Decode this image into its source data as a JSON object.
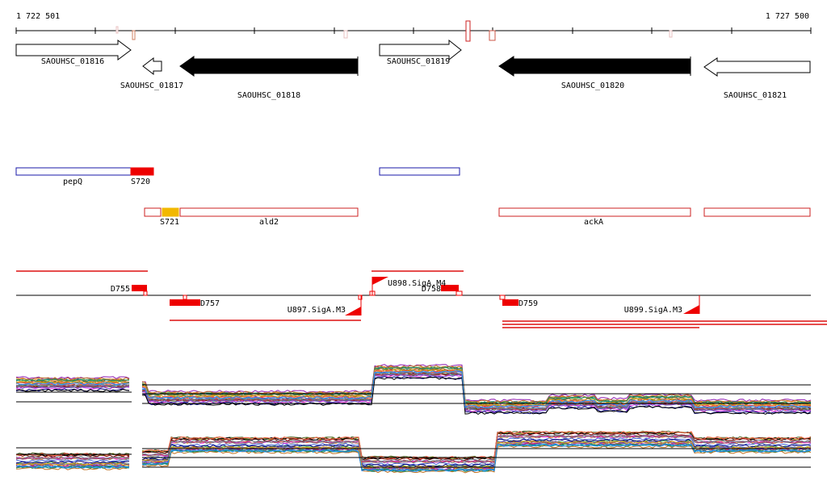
{
  "coordinates": {
    "start": "1 722 501",
    "end": "1 727 500"
  },
  "genes": [
    {
      "id": "SAOUHSC_01816",
      "strand": "+",
      "fill": "#ffffff"
    },
    {
      "id": "SAOUHSC_01817",
      "strand": "-",
      "fill": "#ffffff"
    },
    {
      "id": "SAOUHSC_01818",
      "strand": "-",
      "fill": "#000000"
    },
    {
      "id": "SAOUHSC_01819",
      "strand": "+",
      "fill": "#ffffff"
    },
    {
      "id": "SAOUHSC_01820",
      "strand": "-",
      "fill": "#000000"
    },
    {
      "id": "SAOUHSC_01821",
      "strand": "-",
      "fill": "#ffffff"
    }
  ],
  "plus_strand_features": [
    "pepQ",
    "S720"
  ],
  "minus_strand_features": [
    "S721",
    "ald2",
    "ackA"
  ],
  "segment_labels": [
    "D755",
    "D757",
    "D758",
    "D759"
  ],
  "promoter_labels": [
    "U898.SigA.M4",
    "U897.SigA.M3",
    "U899.SigA.M3"
  ],
  "colors": {
    "plus_feature_outline": "#1a1aa8",
    "minus_feature_outline": "#cc2222",
    "highlight_red": "#ee0000",
    "highlight_orange": "#f2b800",
    "axis": "#000000"
  }
}
